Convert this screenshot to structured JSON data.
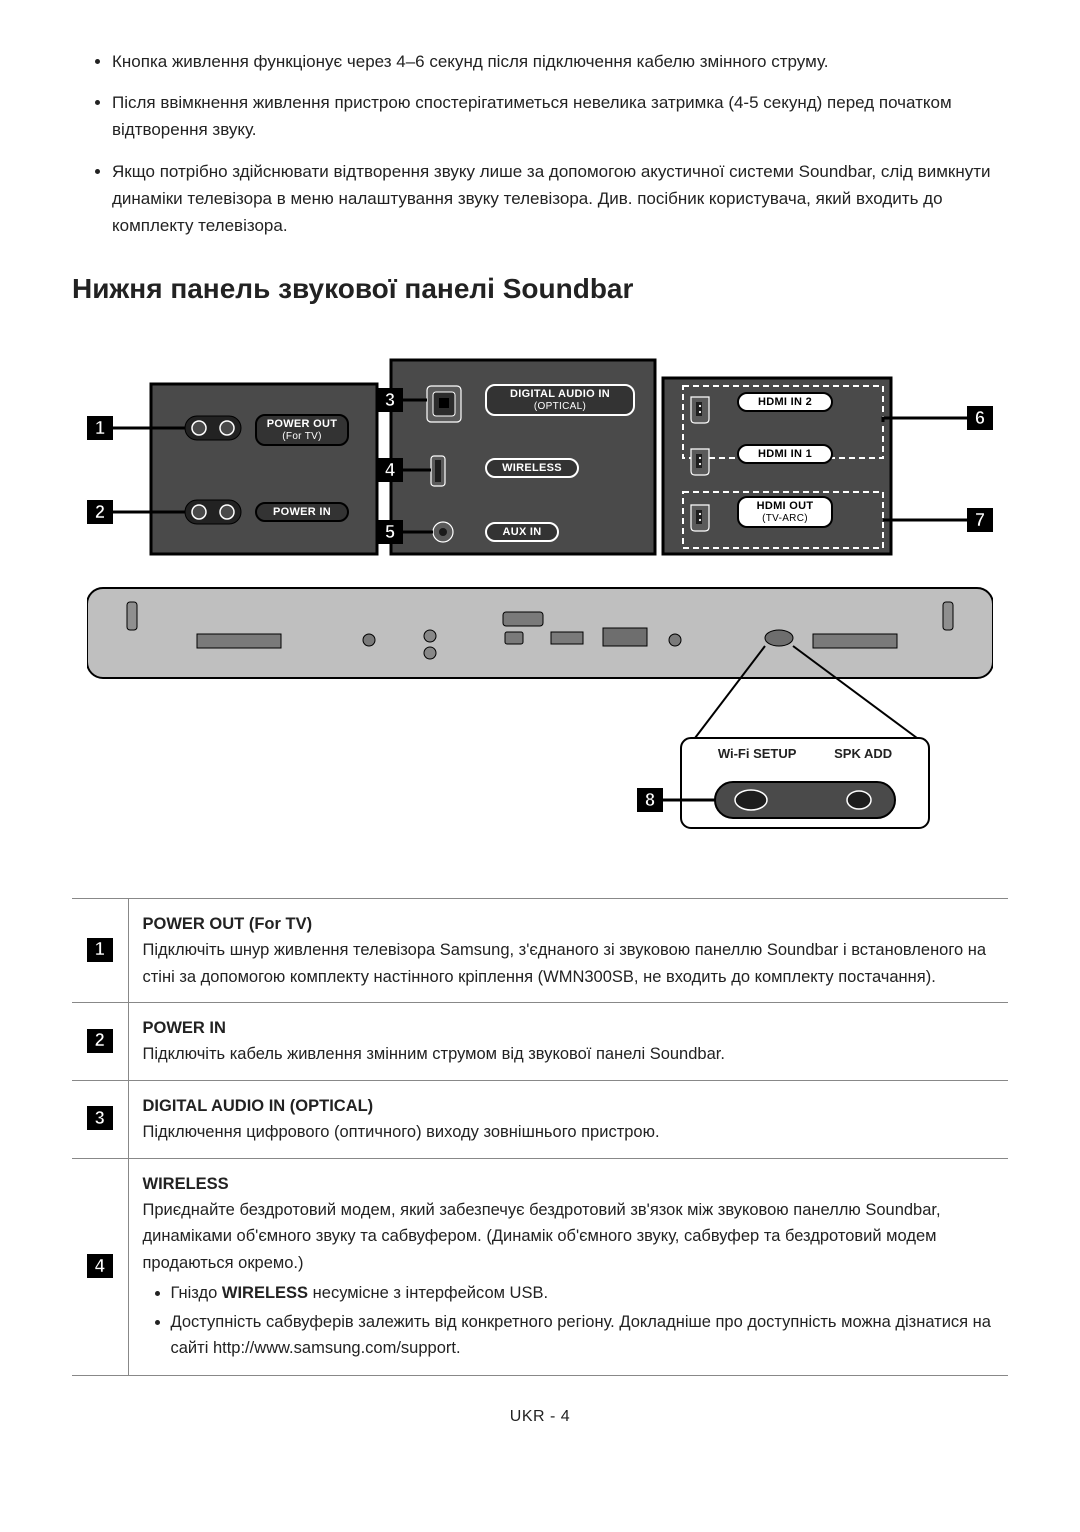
{
  "intro_bullets": [
    "Кнопка живлення функціонує через 4–6 секунд після підключення кабелю змінного струму.",
    "Після ввімкнення живлення пристрою спостерігатиметься невелика затримка (4-5 секунд) перед початком відтворення звуку.",
    "Якщо потрібно здійснювати відтворення звуку лише за допомогою акустичної системи Soundbar, слід вимкнути динаміки телевізора в меню налаштування звуку телевізора. Див. посібник користувача, який входить до комплекту телевізора."
  ],
  "section_title": "Нижня панель звукової панелі Soundbar",
  "diagram": {
    "labels": {
      "power_out_l1": "POWER OUT",
      "power_out_l2": "(For TV)",
      "power_in": "POWER IN",
      "optical_l1": "DIGITAL AUDIO IN",
      "optical_l2": "(OPTICAL)",
      "wireless": "WIRELESS",
      "aux_in": "AUX IN",
      "hdmi_in2": "HDMI IN 2",
      "hdmi_in1": "HDMI IN 1",
      "hdmi_out_l1": "HDMI OUT",
      "hdmi_out_l2": "(TV-ARC)",
      "wifi_setup": "Wi-Fi SETUP",
      "spk_add": "SPK ADD"
    },
    "callouts": [
      "1",
      "2",
      "3",
      "4",
      "5",
      "6",
      "7",
      "8"
    ]
  },
  "ports_table": [
    {
      "idx": "1",
      "title": "POWER OUT (For TV)",
      "desc": "Підключіть шнур живлення телевізора Samsung, з'єднаного зі звуковою панеллю Soundbar і встановленого на стіні за допомогою комплекту настінного кріплення (WMN300SB, не входить до комплекту постачання)."
    },
    {
      "idx": "2",
      "title": "POWER IN",
      "desc": "Підключіть кабель живлення змінним струмом від звукової панелі Soundbar."
    },
    {
      "idx": "3",
      "title": "DIGITAL AUDIO IN (OPTICAL)",
      "desc": "Підключення цифрового (оптичного) виходу зовнішнього пристрою."
    },
    {
      "idx": "4",
      "title": "WIRELESS",
      "desc": "Приєднайте бездротовий модем, який забезпечує бездротовий зв'язок між звуковою панеллю Soundbar, динаміками об'ємного звуку та сабвуфером. (Динамік об'ємного звуку, сабвуфер та бездротовий модем продаються окремо.)",
      "sub": [
        "Гніздо <b>WIRELESS</b> несумісне з інтерфейсом USB.",
        "Доступність сабвуферів залежить від конкретного регіону. Докладніше про доступність можна дізнатися на сайті http://www.samsung.com/support."
      ]
    }
  ],
  "footer": "UKR - 4"
}
